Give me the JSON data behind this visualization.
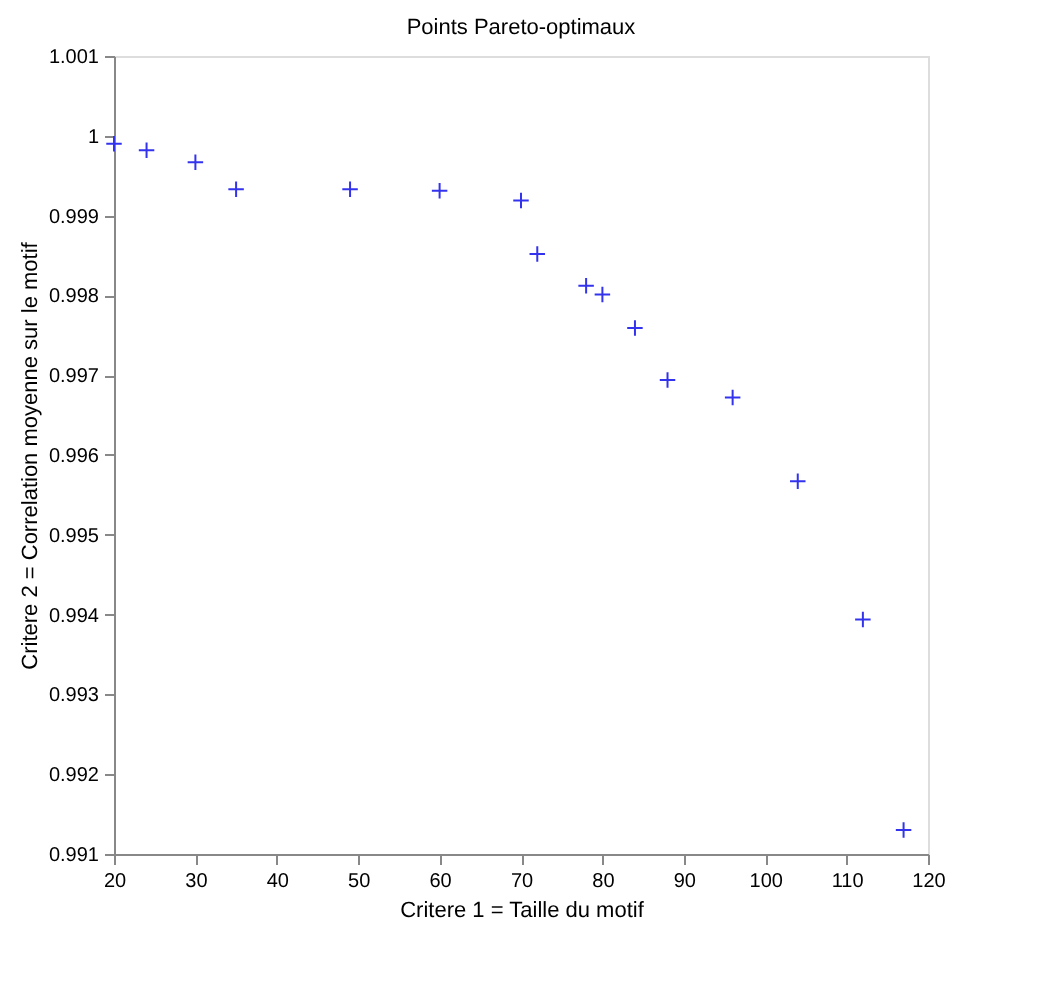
{
  "chart_data": {
    "type": "scatter",
    "title": "Points Pareto-optimaux",
    "xlabel": "Critere 1 = Taille du motif",
    "ylabel": "Critere 2 = Correlation moyenne sur le motif",
    "x": [
      20,
      24,
      30,
      35,
      49,
      60,
      70,
      72,
      78,
      80,
      84,
      88,
      96,
      104,
      112,
      117
    ],
    "series": [
      {
        "color": "#3333ee",
        "values": [
          0.9999,
          0.99982,
          0.99967,
          0.99933,
          0.99933,
          0.99931,
          0.99919,
          0.99852,
          0.99812,
          0.99801,
          0.99759,
          0.99694,
          0.99672,
          0.99567,
          0.99394,
          0.9913
        ]
      }
    ],
    "xlim": [
      20,
      120
    ],
    "xticks": [
      20,
      30,
      40,
      50,
      60,
      70,
      80,
      90,
      100,
      110,
      120
    ],
    "ylim": [
      0.991,
      1.001
    ],
    "yticks": [
      0.991,
      0.992,
      0.993,
      0.994,
      0.995,
      0.996,
      0.997,
      0.998,
      0.999,
      1,
      1.001
    ],
    "marker": "cross",
    "grid": false,
    "legend": false
  }
}
